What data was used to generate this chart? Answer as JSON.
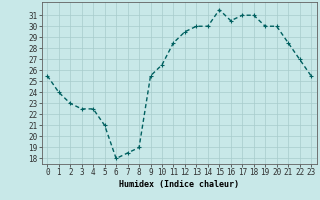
{
  "x": [
    0,
    1,
    2,
    3,
    4,
    5,
    6,
    7,
    8,
    9,
    10,
    11,
    12,
    13,
    14,
    15,
    16,
    17,
    18,
    19,
    20,
    21,
    22,
    23
  ],
  "y": [
    25.5,
    24.0,
    23.0,
    22.5,
    22.5,
    21.0,
    18.0,
    18.5,
    19.0,
    25.5,
    26.5,
    28.5,
    29.5,
    30.0,
    30.0,
    31.5,
    30.5,
    31.0,
    31.0,
    30.0,
    30.0,
    28.5,
    27.0,
    25.5
  ],
  "line_color": "#006060",
  "marker": "+",
  "background_color": "#c8e8e8",
  "grid_color": "#a8cccc",
  "xlabel": "Humidex (Indice chaleur)",
  "xlim": [
    -0.5,
    23.5
  ],
  "ylim": [
    17.5,
    32.2
  ],
  "yticks": [
    18,
    19,
    20,
    21,
    22,
    23,
    24,
    25,
    26,
    27,
    28,
    29,
    30,
    31
  ],
  "xticks": [
    0,
    1,
    2,
    3,
    4,
    5,
    6,
    7,
    8,
    9,
    10,
    11,
    12,
    13,
    14,
    15,
    16,
    17,
    18,
    19,
    20,
    21,
    22,
    23
  ],
  "xlabel_fontsize": 6.0,
  "tick_fontsize": 5.5,
  "linewidth": 1.0,
  "markersize": 3.5
}
